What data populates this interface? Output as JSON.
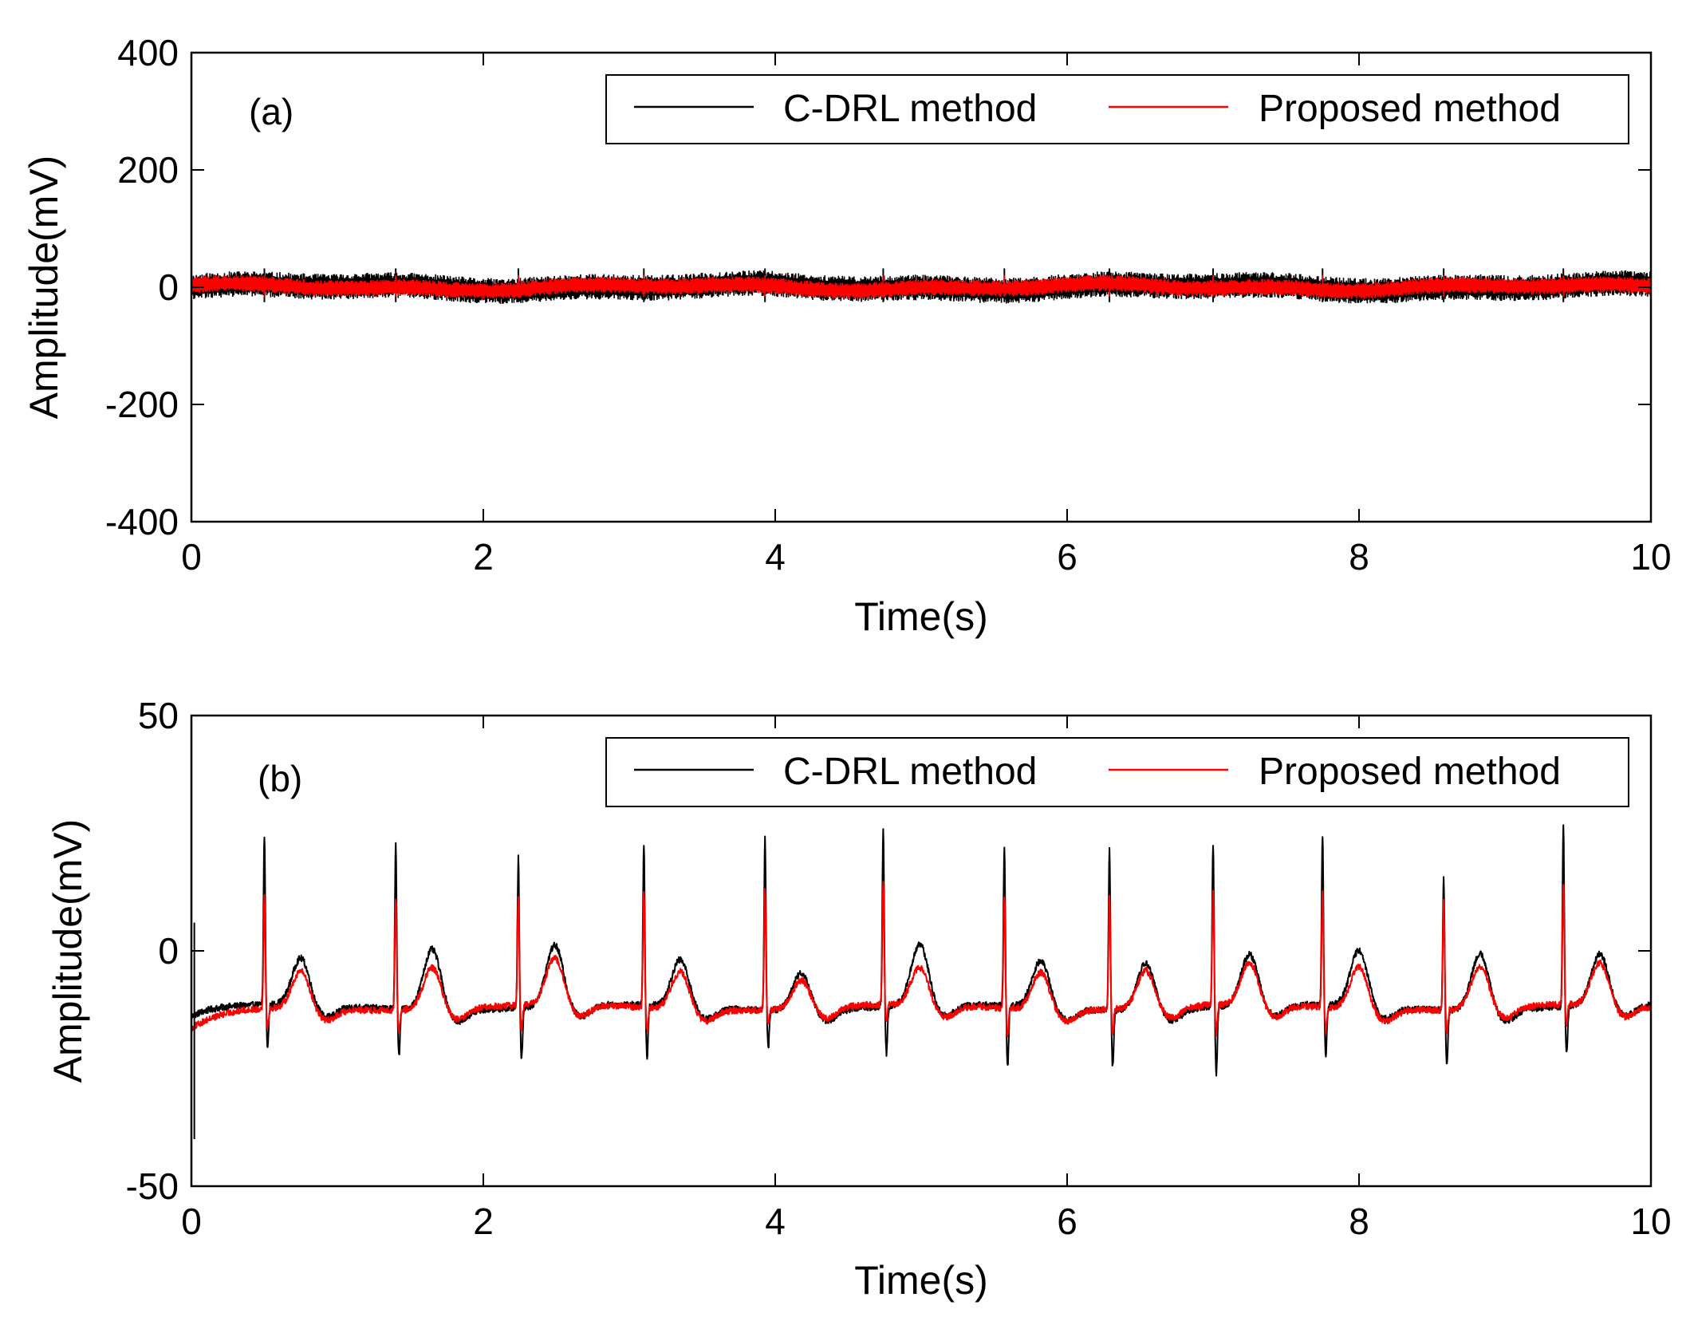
{
  "chart_data": [
    {
      "type": "line",
      "panel_label": "(a)",
      "xlabel": "Time(s)",
      "ylabel": "Amplitude(mV)",
      "xlim": [
        0,
        10
      ],
      "ylim": [
        -400,
        400
      ],
      "x_ticks": [
        0,
        2,
        4,
        6,
        8,
        10
      ],
      "y_ticks": [
        400,
        200,
        0,
        -200,
        -400
      ],
      "x_tick_labels": [
        "0",
        "2",
        "4",
        "6",
        "8",
        "10"
      ],
      "y_tick_labels": [
        "400",
        "200",
        "0",
        "-200",
        "-400"
      ],
      "legend": {
        "position": "top-right",
        "orientation": "horizontal"
      },
      "beats": [
        0.5,
        1.4,
        2.24,
        3.1,
        3.93,
        4.74,
        5.57,
        6.29,
        7.0,
        7.75,
        8.58,
        9.4
      ],
      "series": [
        {
          "name": "C-DRL method",
          "color": "#000000",
          "band_amplitude": 22,
          "spike_amplitude": 32
        },
        {
          "name": "Proposed method",
          "color": "#ff0000",
          "band_amplitude": 14,
          "spike_amplitude": 20
        }
      ]
    },
    {
      "type": "line",
      "panel_label": "(b)",
      "xlabel": "Time(s)",
      "ylabel": "Amplitude(mV)",
      "xlim": [
        0,
        10
      ],
      "ylim": [
        -50,
        50
      ],
      "x_ticks": [
        0,
        2,
        4,
        6,
        8,
        10
      ],
      "y_ticks": [
        50,
        0,
        -50
      ],
      "x_tick_labels": [
        "0",
        "2",
        "4",
        "6",
        "8",
        "10"
      ],
      "y_tick_labels": [
        "50",
        "0",
        "-50"
      ],
      "legend": {
        "position": "top-right",
        "orientation": "horizontal"
      },
      "beats": [
        0.5,
        1.4,
        2.24,
        3.1,
        3.93,
        4.74,
        5.57,
        6.29,
        7.0,
        7.75,
        8.58,
        9.4
      ],
      "baseline": -12,
      "series": [
        {
          "name": "C-DRL method",
          "color": "#000000",
          "r_peaks": [
            24,
            23,
            20,
            22,
            25,
            26,
            22,
            22,
            23,
            24,
            16,
            26
          ],
          "s_troughs": [
            -21,
            -22,
            -23,
            -23,
            -20,
            -22,
            -25,
            -24,
            -26,
            -23,
            -24,
            -22
          ],
          "t_peaks": [
            -2,
            1,
            1,
            -2,
            -4,
            1,
            -2,
            -2,
            -1,
            0,
            0,
            -1
          ]
        },
        {
          "name": "Proposed method",
          "color": "#ff0000",
          "r_peaks": [
            12,
            12,
            11,
            12,
            13,
            14,
            12,
            12,
            12,
            13,
            11,
            14
          ],
          "s_troughs": [
            -16,
            -17,
            -17,
            -17,
            -15,
            -16,
            -18,
            -17,
            -18,
            -17,
            -17,
            -16
          ],
          "t_peaks": [
            -4,
            -3,
            -2,
            -4,
            -6,
            -4,
            -4,
            -4,
            -3,
            -3,
            -3,
            -3
          ]
        }
      ]
    }
  ]
}
